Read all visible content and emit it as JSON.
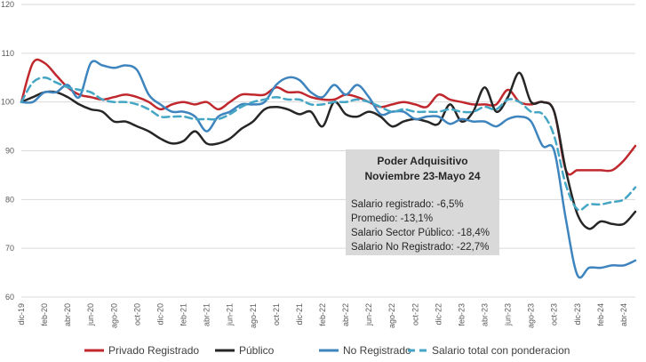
{
  "chart_data": {
    "type": "line",
    "title": "",
    "xlabel": "",
    "ylabel": "",
    "ylim": [
      60,
      120
    ],
    "yticks": [
      60,
      70,
      80,
      90,
      100,
      110,
      120
    ],
    "grid": true,
    "legend_position": "bottom",
    "x": [
      "dic-19",
      "ene-20",
      "feb-20",
      "mar-20",
      "abr-20",
      "may-20",
      "jun-20",
      "jul-20",
      "ago-20",
      "sep-20",
      "oct-20",
      "nov-20",
      "dic-20",
      "ene-21",
      "feb-21",
      "mar-21",
      "abr-21",
      "may-21",
      "jun-21",
      "jul-21",
      "ago-21",
      "sep-21",
      "oct-21",
      "nov-21",
      "dic-21",
      "ene-22",
      "feb-22",
      "mar-22",
      "abr-22",
      "may-22",
      "jun-22",
      "jul-22",
      "ago-22",
      "sep-22",
      "oct-22",
      "nov-22",
      "dic-22",
      "ene-23",
      "feb-23",
      "mar-23",
      "abr-23",
      "may-23",
      "jun-23",
      "jul-23",
      "ago-23",
      "sep-23",
      "oct-23",
      "nov-23",
      "dic-23",
      "ene-24",
      "feb-24",
      "mar-24",
      "abr-24",
      "may-24"
    ],
    "x_tick_labels": [
      "dic-19",
      "feb-20",
      "abr-20",
      "jun-20",
      "ago-20",
      "oct-20",
      "dic-20",
      "feb-21",
      "abr-21",
      "jun-21",
      "ago-21",
      "oct-21",
      "dic-21",
      "feb-22",
      "abr-22",
      "jun-22",
      "ago-22",
      "oct-22",
      "dic-22",
      "feb-23",
      "abr-23",
      "jun-23",
      "ago-23",
      "oct-23",
      "dic-23",
      "feb-24",
      "abr-24"
    ],
    "series": [
      {
        "name": "Privado Registrado",
        "color": "#C0282D",
        "dash": false,
        "values": [
          100,
          108,
          108,
          105.5,
          103,
          101.5,
          101,
          100.5,
          101,
          101.5,
          101,
          100,
          98.5,
          99.5,
          100,
          99.5,
          100,
          98.5,
          100,
          101.5,
          101.5,
          101.5,
          103,
          102,
          102,
          101,
          100.5,
          100.5,
          101.5,
          101,
          100,
          99,
          99.5,
          100,
          99.5,
          99,
          101.5,
          100.5,
          100,
          99.5,
          99.5,
          99.5,
          102.5,
          100,
          99.5,
          100,
          98,
          86,
          86,
          86,
          86,
          86,
          88,
          91
        ]
      },
      {
        "name": "Público",
        "color": "#262626",
        "dash": false,
        "values": [
          100,
          101,
          102,
          102,
          101,
          99.5,
          98.5,
          98,
          96,
          96,
          95,
          94,
          92.5,
          91.5,
          92,
          94,
          91.5,
          91.5,
          92.5,
          94.5,
          96,
          98.5,
          99,
          98.5,
          97.5,
          98,
          95,
          100,
          97.5,
          97,
          98,
          97,
          95,
          96,
          96.5,
          96,
          95.5,
          99.5,
          96,
          98,
          103,
          98,
          101,
          106,
          100,
          100,
          98,
          86,
          77,
          74,
          75.5,
          75,
          75,
          77.5
        ]
      },
      {
        "name": "No Registrado",
        "color": "#3E84BE",
        "dash": false,
        "values": [
          100,
          100,
          102,
          102,
          103.5,
          101,
          108,
          107.5,
          107,
          107.5,
          106.5,
          101.5,
          99.5,
          98,
          98,
          97,
          94,
          97,
          98,
          99.5,
          99.5,
          100,
          103.5,
          105,
          104.5,
          102,
          101,
          103.5,
          101.5,
          103.5,
          101,
          97.5,
          98,
          98,
          96.5,
          97,
          97,
          95.5,
          96.5,
          96,
          96,
          95,
          96.5,
          97,
          96,
          91,
          90,
          76,
          64.5,
          66,
          66,
          66.5,
          66.5,
          67.5
        ]
      },
      {
        "name": "Salario total con ponderacion",
        "color": "#44A6C4",
        "dash": true,
        "values": [
          100,
          104,
          105,
          104,
          103,
          102.5,
          102,
          100.5,
          100,
          100,
          99.5,
          98.5,
          97,
          97,
          97,
          96.5,
          96.5,
          96.5,
          97.5,
          99,
          100,
          100.5,
          101,
          100.5,
          100.5,
          99.5,
          99.5,
          100,
          100,
          100.5,
          100,
          99,
          98,
          98.5,
          98,
          98,
          98,
          98.5,
          98,
          98,
          99,
          98.5,
          100.5,
          100,
          98,
          97.5,
          93,
          83,
          78,
          79,
          79,
          79.5,
          80,
          82.5
        ]
      }
    ],
    "annotation": {
      "title_line1": "Poder Adquisitivo",
      "title_line2": "Noviembre 23-Mayo 24",
      "lines": [
        "Salario registrado: -6,5%",
        "Promedio: -13,1%",
        "Salario Sector Público: -18,4%",
        "Salario No Registrado: -22,7%"
      ],
      "background": "#D9D9D9"
    }
  }
}
